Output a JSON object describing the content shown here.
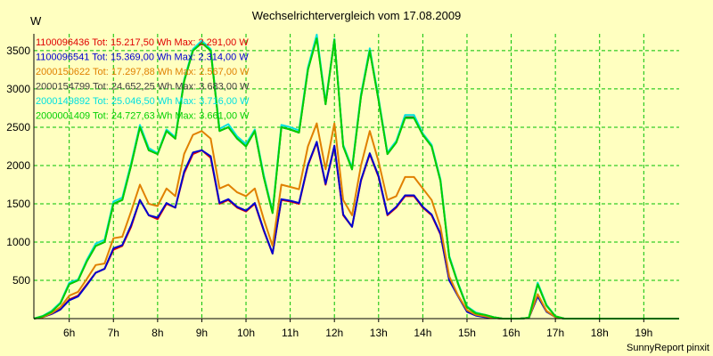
{
  "chart_data": {
    "type": "line",
    "title": "Wechselrichtervergleich vom 17.08.2009",
    "ylabel": "W",
    "footer": "SunnyReport pinxit",
    "x_range_hours": [
      5.2,
      19.8
    ],
    "ylim": [
      0,
      3720
    ],
    "y_ticks": [
      500,
      1000,
      1500,
      2000,
      2500,
      3000,
      3500
    ],
    "x_ticks": [
      {
        "value": 6,
        "label": "6h"
      },
      {
        "value": 7,
        "label": "7h"
      },
      {
        "value": 8,
        "label": "8h"
      },
      {
        "value": 9,
        "label": "9h"
      },
      {
        "value": 10,
        "label": "10h"
      },
      {
        "value": 11,
        "label": "11h"
      },
      {
        "value": 12,
        "label": "12h"
      },
      {
        "value": 13,
        "label": "13h"
      },
      {
        "value": 14,
        "label": "14h"
      },
      {
        "value": 15,
        "label": "15h"
      },
      {
        "value": 16,
        "label": "16h"
      },
      {
        "value": 17,
        "label": "17h"
      },
      {
        "value": 18,
        "label": "18h"
      },
      {
        "value": 19,
        "label": "19h"
      }
    ],
    "grid": true,
    "legend_position": "top-left",
    "x": [
      5.2,
      5.4,
      5.6,
      5.8,
      6.0,
      6.2,
      6.4,
      6.6,
      6.8,
      7.0,
      7.2,
      7.4,
      7.6,
      7.8,
      8.0,
      8.2,
      8.4,
      8.6,
      8.8,
      9.0,
      9.2,
      9.4,
      9.6,
      9.8,
      10.0,
      10.2,
      10.4,
      10.6,
      10.8,
      11.0,
      11.2,
      11.4,
      11.6,
      11.8,
      12.0,
      12.2,
      12.4,
      12.6,
      12.8,
      13.0,
      13.2,
      13.4,
      13.6,
      13.8,
      14.0,
      14.2,
      14.4,
      14.6,
      14.8,
      15.0,
      15.2,
      15.4,
      15.6,
      15.8,
      16.0,
      16.2,
      16.4,
      16.6,
      16.8,
      17.0,
      17.2,
      17.4,
      17.6,
      17.8,
      18.0,
      18.2,
      18.4,
      18.6,
      18.8,
      19.0,
      19.2,
      19.4,
      19.6,
      19.8
    ],
    "series": [
      {
        "name": "1100096436",
        "legend": "1100096436 Tot: 15.217,50 Wh Max: 2.291,00 W",
        "color": "#e00000",
        "values": [
          0,
          20,
          60,
          120,
          250,
          300,
          450,
          600,
          650,
          900,
          950,
          1200,
          1550,
          1350,
          1300,
          1500,
          1450,
          1900,
          2150,
          2200,
          2100,
          1500,
          1550,
          1450,
          1400,
          1500,
          1150,
          850,
          1550,
          1530,
          1500,
          2000,
          2300,
          1750,
          2250,
          1350,
          1200,
          1800,
          2150,
          1850,
          1350,
          1450,
          1600,
          1600,
          1450,
          1350,
          1100,
          500,
          300,
          100,
          50,
          30,
          10,
          0,
          0,
          0,
          10,
          300,
          100,
          20,
          0,
          0,
          0,
          0,
          0,
          0,
          0,
          0,
          0,
          0,
          0,
          0,
          0,
          0
        ]
      },
      {
        "name": "1100096541",
        "legend": "1100096541 Tot: 15.369,00 Wh Max: 2.314,00 W",
        "color": "#0000d0",
        "values": [
          0,
          20,
          60,
          120,
          240,
          290,
          440,
          600,
          650,
          920,
          960,
          1220,
          1550,
          1350,
          1320,
          1510,
          1450,
          1920,
          2170,
          2200,
          2120,
          1510,
          1560,
          1460,
          1410,
          1510,
          1160,
          850,
          1560,
          1540,
          1510,
          2010,
          2310,
          1760,
          2260,
          1360,
          1200,
          1810,
          2160,
          1860,
          1360,
          1460,
          1610,
          1610,
          1460,
          1360,
          1110,
          500,
          290,
          90,
          40,
          20,
          10,
          0,
          0,
          0,
          10,
          290,
          90,
          20,
          0,
          0,
          0,
          0,
          0,
          0,
          0,
          0,
          0,
          0,
          0,
          0,
          0,
          0
        ]
      },
      {
        "name": "2000150622",
        "legend": "2000150622 Tot: 17.297,88 Wh Max: 2.567,00 W",
        "color": "#e08000",
        "values": [
          0,
          20,
          70,
          150,
          300,
          350,
          520,
          700,
          720,
          1050,
          1070,
          1400,
          1750,
          1500,
          1470,
          1700,
          1600,
          2150,
          2400,
          2450,
          2350,
          1700,
          1750,
          1650,
          1600,
          1700,
          1300,
          950,
          1750,
          1720,
          1690,
          2250,
          2550,
          1950,
          2550,
          1550,
          1350,
          2000,
          2450,
          2050,
          1550,
          1600,
          1850,
          1850,
          1700,
          1550,
          1200,
          550,
          300,
          110,
          50,
          30,
          10,
          0,
          0,
          0,
          10,
          320,
          100,
          20,
          0,
          0,
          0,
          0,
          0,
          0,
          0,
          0,
          0,
          0,
          0,
          0,
          0,
          0
        ]
      },
      {
        "name": "2000154799",
        "legend": "2000154799 Tot: 24.652,25 Wh Max: 3.683,00 W",
        "color": "#404040",
        "values": [
          0,
          30,
          90,
          200,
          450,
          500,
          750,
          950,
          1000,
          1500,
          1550,
          2000,
          2500,
          2200,
          2150,
          2450,
          2350,
          3100,
          3500,
          3600,
          3500,
          2450,
          2500,
          2350,
          2250,
          2450,
          1850,
          1380,
          2500,
          2470,
          2430,
          3250,
          3680,
          2800,
          3650,
          2250,
          1950,
          2900,
          3500,
          2850,
          2150,
          2300,
          2630,
          2630,
          2400,
          2250,
          1800,
          800,
          450,
          150,
          70,
          50,
          20,
          0,
          0,
          0,
          10,
          450,
          170,
          30,
          0,
          0,
          0,
          0,
          0,
          0,
          0,
          0,
          0,
          0,
          0,
          0,
          0,
          0
        ]
      },
      {
        "name": "2000149892",
        "legend": "2000149892 Tot: 25.046,50 Wh Max: 3.716,00 W",
        "color": "#00e0e0",
        "values": [
          0,
          35,
          100,
          210,
          470,
          510,
          770,
          980,
          1030,
          1530,
          1580,
          2030,
          2530,
          2230,
          2160,
          2470,
          2370,
          3120,
          3520,
          3630,
          3520,
          2480,
          2540,
          2380,
          2280,
          2470,
          1880,
          1400,
          2530,
          2500,
          2460,
          3280,
          3710,
          2830,
          3650,
          2270,
          1970,
          2930,
          3530,
          2880,
          2170,
          2320,
          2660,
          2660,
          2420,
          2270,
          1820,
          820,
          460,
          160,
          80,
          50,
          20,
          0,
          0,
          0,
          10,
          470,
          180,
          30,
          0,
          0,
          0,
          0,
          0,
          0,
          0,
          0,
          0,
          0,
          0,
          0,
          0,
          0
        ]
      },
      {
        "name": "2000001409",
        "legend": "2000001409 Tot: 24.727,63 Wh Max: 3.661,00 W",
        "color": "#00d000",
        "values": [
          0,
          30,
          90,
          200,
          450,
          500,
          750,
          950,
          1000,
          1500,
          1550,
          2000,
          2500,
          2200,
          2150,
          2450,
          2350,
          3100,
          3500,
          3600,
          3500,
          2450,
          2500,
          2350,
          2250,
          2450,
          1850,
          1380,
          2500,
          2470,
          2430,
          3250,
          3660,
          2800,
          3640,
          2250,
          1950,
          2900,
          3500,
          2850,
          2150,
          2300,
          2620,
          2620,
          2400,
          2250,
          1800,
          800,
          450,
          150,
          70,
          50,
          20,
          0,
          0,
          0,
          10,
          450,
          170,
          30,
          0,
          0,
          0,
          0,
          0,
          0,
          0,
          0,
          0,
          0,
          0,
          0,
          0,
          0
        ]
      }
    ]
  }
}
